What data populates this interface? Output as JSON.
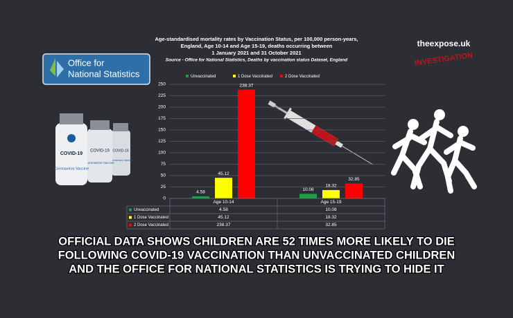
{
  "chart_data": {
    "type": "bar",
    "title": [
      "Age-standardised mortality rates by Vaccination Status, per 100,000 person-years,",
      "England, Age 10-14 and Age 15-19, deaths occurring between",
      "1 January 2021 and 31 October 2021"
    ],
    "subtitle": "Source - Office for National Statistics, Deaths by vaccination status Dataset, England",
    "categories": [
      "Age 10-14",
      "Age 15-19"
    ],
    "series": [
      {
        "name": "Unvaccinated",
        "color": "#1f9e48",
        "values": [
          4.58,
          10.08
        ]
      },
      {
        "name": "1 Dose Vaccinated",
        "color": "#ffff00",
        "values": [
          45.12,
          18.32
        ]
      },
      {
        "name": "2 Dose Vaccinated",
        "color": "#ff0000",
        "values": [
          238.37,
          32.85
        ]
      }
    ],
    "ylim": [
      0,
      250
    ],
    "yticks": [
      0,
      25,
      50,
      75,
      100,
      125,
      150,
      175,
      200,
      225,
      250
    ],
    "grid": true,
    "legend": "top",
    "data_table": true
  },
  "logo": [
    "Office for",
    "National Statistics"
  ],
  "vial": {
    "name": "COVID-19",
    "label": "Coronavirus Vaccine"
  },
  "brand": "theexpose.uk",
  "stamp": "INVESTIGATION",
  "headline": [
    "OFFICIAL DATA SHOWS CHILDREN ARE 52 TIMES MORE LIKELY TO DIE",
    "FOLLOWING COVID-19 VACCINATION THAN UNVACCINATED CHILDREN",
    "AND THE OFFICE FOR NATIONAL STATISTICS IS TRYING TO HIDE IT"
  ]
}
